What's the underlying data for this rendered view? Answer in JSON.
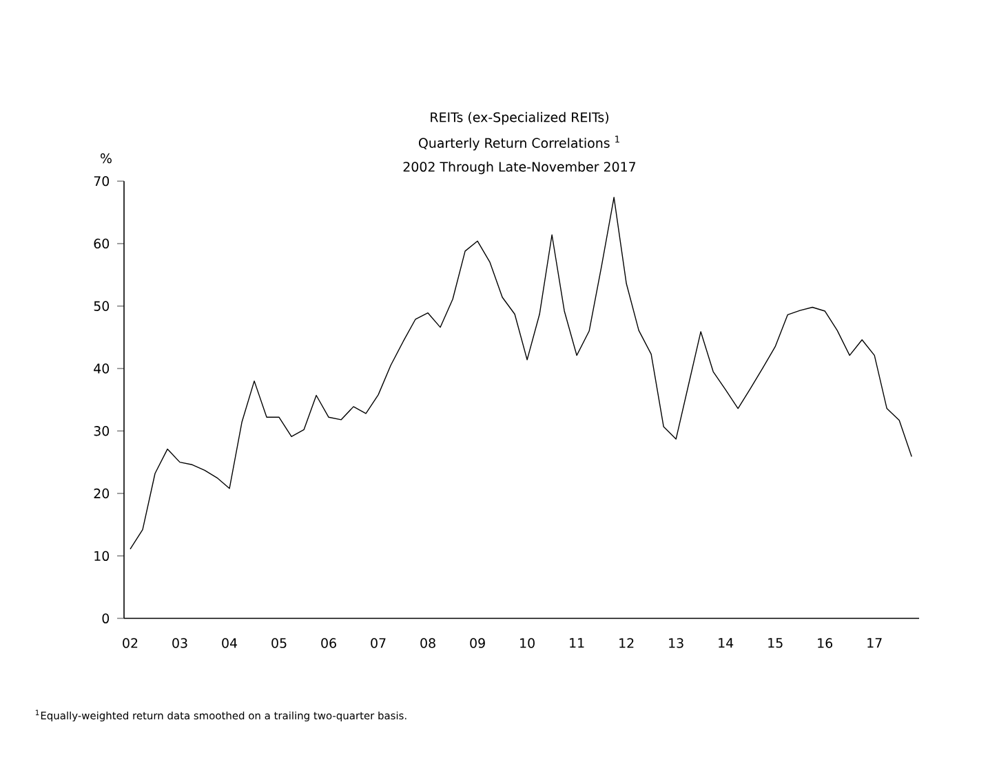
{
  "chart_data": {
    "type": "line",
    "title": "REITs (ex-Specialized REITs)",
    "subtitle": "Quarterly Return Correlations $^{1}$",
    "ylabel": "%",
    "annotations": [
      "2002 Through Late-November 2017",
      "$^{1}$Equally-weighted return data smoothed on a trailing two-quarter basis."
    ],
    "x": [
      2002.0,
      2002.25,
      2002.5,
      2002.75,
      2003.0,
      2003.25,
      2003.5,
      2003.75,
      2004.0,
      2004.25,
      2004.5,
      2004.75,
      2005.0,
      2005.25,
      2005.5,
      2005.75,
      2006.0,
      2006.25,
      2006.5,
      2006.75,
      2007.0,
      2007.25,
      2007.5,
      2007.75,
      2008.0,
      2008.25,
      2008.5,
      2008.75,
      2009.0,
      2009.25,
      2009.5,
      2009.75,
      2010.0,
      2010.25,
      2010.5,
      2010.75,
      2011.0,
      2011.25,
      2011.5,
      2011.75,
      2012.0,
      2012.25,
      2012.5,
      2012.75,
      2013.0,
      2013.25,
      2013.5,
      2013.75,
      2014.0,
      2014.25,
      2014.5,
      2014.75,
      2015.0,
      2015.25,
      2015.5,
      2015.75,
      2016.0,
      2016.25,
      2016.5,
      2016.75,
      2017.0,
      2017.25,
      2017.5,
      2017.75
    ],
    "series": [
      {
        "color": "#000000",
        "line_style": "solid",
        "values": [
          11.1,
          14.2,
          23.2,
          27.1,
          25.0,
          24.6,
          23.7,
          22.5,
          20.8,
          31.4,
          38.0,
          32.2,
          32.2,
          29.1,
          30.2,
          35.7,
          32.2,
          31.8,
          33.9,
          32.8,
          35.8,
          40.5,
          44.3,
          47.9,
          48.9,
          46.6,
          51.1,
          58.8,
          60.4,
          57.0,
          51.4,
          48.7,
          41.4,
          48.7,
          61.4,
          49.2,
          42.1,
          46.0,
          56.4,
          67.4,
          53.6,
          46.1,
          42.3,
          30.7,
          28.7,
          37.3,
          45.9,
          39.5,
          36.6,
          33.6,
          36.8,
          40.1,
          43.5,
          48.6,
          49.3,
          49.8,
          49.2,
          46.1,
          42.1,
          44.6,
          42.1,
          33.6,
          31.7,
          25.9
        ]
      }
    ],
    "xlim": [
      2001.875,
      2017.9
    ],
    "xticks": [
      {
        "value": 2002,
        "label": "02"
      },
      {
        "value": 2003,
        "label": "03"
      },
      {
        "value": 2004,
        "label": "04"
      },
      {
        "value": 2005,
        "label": "05"
      },
      {
        "value": 2006,
        "label": "06"
      },
      {
        "value": 2007,
        "label": "07"
      },
      {
        "value": 2008,
        "label": "08"
      },
      {
        "value": 2009,
        "label": "09"
      },
      {
        "value": 2010,
        "label": "10"
      },
      {
        "value": 2011,
        "label": "11"
      },
      {
        "value": 2012,
        "label": "12"
      },
      {
        "value": 2013,
        "label": "13"
      },
      {
        "value": 2014,
        "label": "14"
      },
      {
        "value": 2015,
        "label": "15"
      },
      {
        "value": 2016,
        "label": "16"
      },
      {
        "value": 2017,
        "label": "17"
      }
    ],
    "ylim": [
      0,
      70
    ],
    "yticks": [
      0,
      10,
      20,
      30,
      40,
      50,
      60,
      70
    ]
  }
}
